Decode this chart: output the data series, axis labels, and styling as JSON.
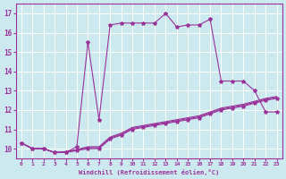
{
  "xlabel": "Windchill (Refroidissement éolien,°C)",
  "background_color": "#cde9f0",
  "grid_color": "#ffffff",
  "line_color": "#993399",
  "xlim": [
    -0.5,
    23.5
  ],
  "ylim": [
    9.5,
    17.5
  ],
  "xticks": [
    0,
    1,
    2,
    3,
    4,
    5,
    6,
    7,
    8,
    9,
    10,
    11,
    12,
    13,
    14,
    15,
    16,
    17,
    18,
    19,
    20,
    21,
    22,
    23
  ],
  "yticks": [
    10,
    11,
    12,
    13,
    14,
    15,
    16,
    17
  ],
  "series_main_x": [
    0,
    1,
    2,
    3,
    4,
    5,
    6,
    7,
    8,
    9,
    10,
    11,
    12,
    13,
    14,
    15,
    16,
    17,
    18,
    19,
    20,
    21,
    22,
    23
  ],
  "series_main_y": [
    10.3,
    10.0,
    10.0,
    9.8,
    9.8,
    10.1,
    15.5,
    11.5,
    16.4,
    16.5,
    16.5,
    16.5,
    16.5,
    17.0,
    16.3,
    16.4,
    16.4,
    16.7,
    13.5,
    13.5,
    13.5,
    13.0,
    11.9,
    11.9
  ],
  "series_low1_x": [
    0,
    1,
    2,
    3,
    4,
    5,
    6,
    7,
    8,
    9,
    10,
    11,
    12,
    13,
    14,
    15,
    16,
    17,
    18,
    19,
    20,
    21,
    22,
    23
  ],
  "series_low1_y": [
    10.3,
    10.0,
    10.0,
    9.8,
    9.8,
    9.9,
    10.0,
    10.0,
    10.5,
    10.7,
    11.0,
    11.1,
    11.2,
    11.3,
    11.4,
    11.5,
    11.6,
    11.8,
    12.0,
    12.1,
    12.2,
    12.35,
    12.5,
    12.6
  ],
  "series_low2_x": [
    0,
    1,
    2,
    3,
    4,
    5,
    6,
    7,
    8,
    9,
    10,
    11,
    12,
    13,
    14,
    15,
    16,
    17,
    18,
    19,
    20,
    21,
    22,
    23
  ],
  "series_low2_y": [
    10.3,
    10.0,
    10.0,
    9.8,
    9.82,
    9.92,
    10.05,
    10.05,
    10.55,
    10.75,
    11.05,
    11.15,
    11.25,
    11.35,
    11.45,
    11.55,
    11.65,
    11.85,
    12.05,
    12.15,
    12.25,
    12.4,
    12.55,
    12.65
  ],
  "series_low3_x": [
    0,
    1,
    2,
    3,
    4,
    5,
    6,
    7,
    8,
    9,
    10,
    11,
    12,
    13,
    14,
    15,
    16,
    17,
    18,
    19,
    20,
    21,
    22,
    23
  ],
  "series_low3_y": [
    10.3,
    10.0,
    10.0,
    9.8,
    9.85,
    9.95,
    10.1,
    10.1,
    10.6,
    10.8,
    11.1,
    11.2,
    11.3,
    11.4,
    11.5,
    11.6,
    11.7,
    11.9,
    12.1,
    12.2,
    12.3,
    12.45,
    12.6,
    12.7
  ],
  "marker": "*",
  "markersize": 3,
  "linewidth": 0.8
}
